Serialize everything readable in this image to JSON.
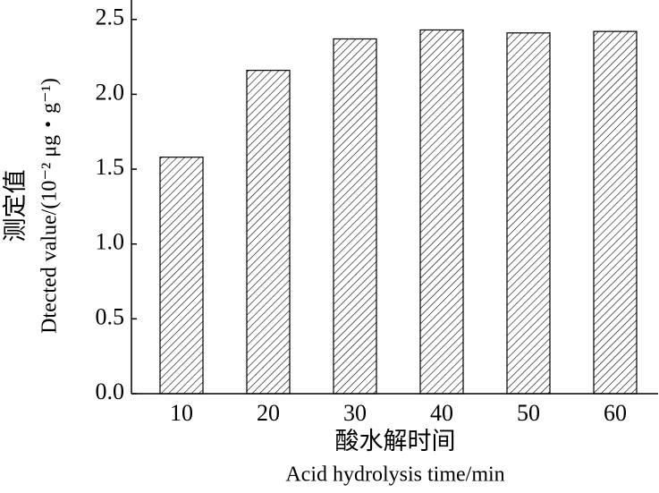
{
  "chart_data": {
    "type": "bar",
    "y_label_zh": "测定值",
    "y_label_en": "Dtected value/(10⁻² μg・g⁻¹)",
    "x_label_zh": "酸水解时间",
    "x_label_en": "Acid hydrolysis time/min",
    "categories": [
      "10",
      "20",
      "30",
      "40",
      "50",
      "60"
    ],
    "values": [
      1.58,
      2.16,
      2.37,
      2.43,
      2.41,
      2.42
    ],
    "color": "#000000",
    "ylim": [
      0,
      2.63
    ],
    "yticks": [
      {
        "value": 0,
        "label": "0.0"
      },
      0.5,
      {
        "value": 1,
        "label": "1.0"
      },
      1.5,
      {
        "value": 2,
        "label": "2.0"
      },
      2.5
    ]
  }
}
